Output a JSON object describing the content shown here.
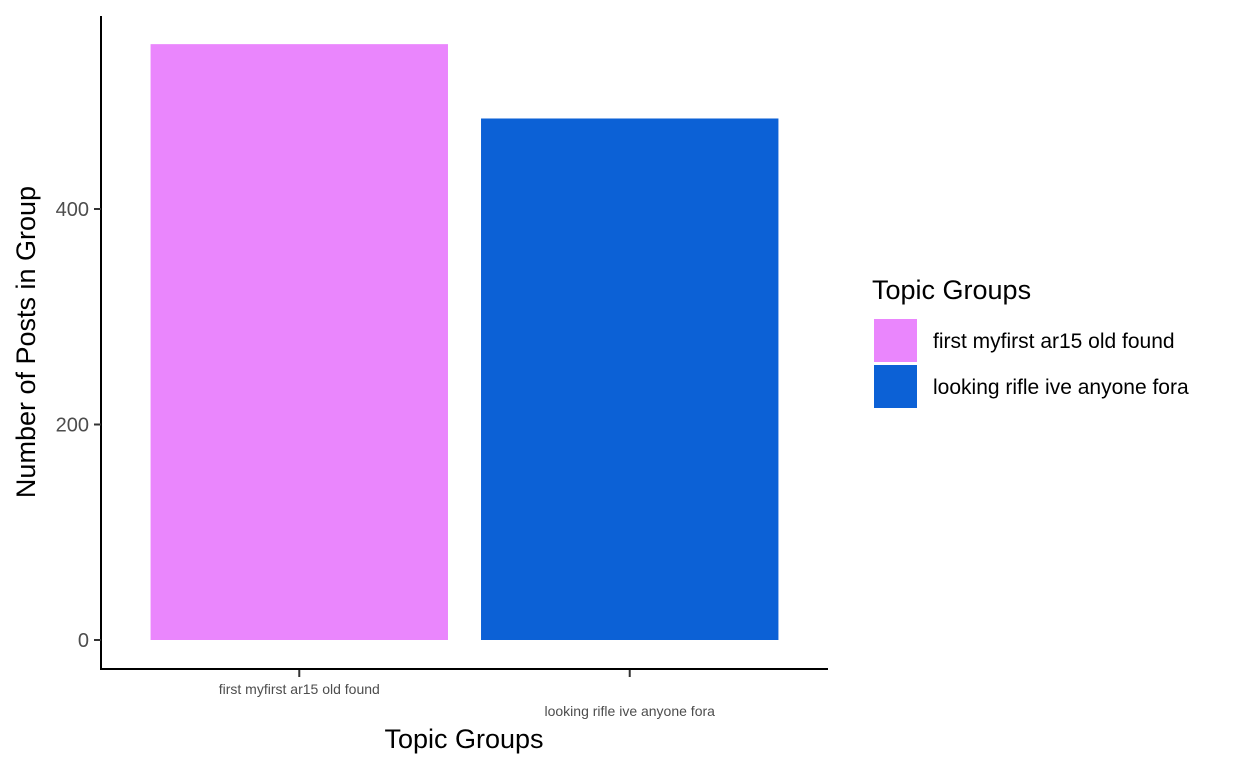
{
  "chart_data": {
    "type": "bar",
    "categories": [
      "first myfirst ar15 old found",
      "looking rifle ive anyone fora"
    ],
    "values": [
      553,
      484
    ],
    "colors": [
      "#EA86FD",
      "#0C61D6"
    ],
    "title": "",
    "xlabel": "Topic Groups",
    "ylabel": "Number of Posts in Group",
    "ylim": [
      0,
      580
    ],
    "yticks": [
      0,
      200,
      400
    ],
    "grid": false,
    "legend": {
      "title": "Topic Groups",
      "position": "right",
      "entries": [
        "first myfirst ar15 old found",
        "looking rifle ive anyone fora"
      ]
    }
  }
}
